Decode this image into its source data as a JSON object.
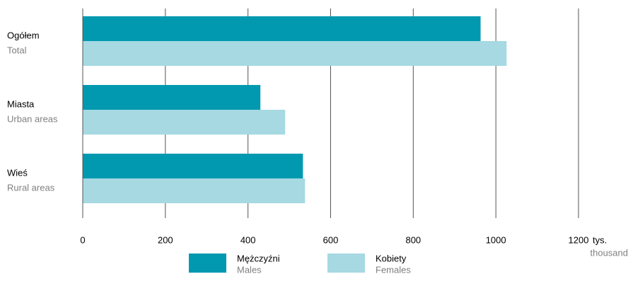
{
  "chart_data": {
    "type": "bar",
    "orientation": "horizontal",
    "categories": [
      "Ogółem",
      "Miasta",
      "Wieś"
    ],
    "categories_en": [
      "Total",
      "Urban areas",
      "Rural areas"
    ],
    "series": [
      {
        "name": "Mężczyźni",
        "name_en": "Males",
        "color": "#0199b0",
        "values": [
          963,
          430,
          533
        ]
      },
      {
        "name": "Kobiety",
        "name_en": "Females",
        "color": "#a6d9e2",
        "values": [
          1026,
          490,
          538
        ]
      }
    ],
    "xlim": [
      0,
      1200
    ],
    "xticks": [
      0,
      200,
      400,
      600,
      800,
      1000,
      1200
    ],
    "x_unit": "tys.",
    "x_unit_en": "thousand",
    "grid": true
  }
}
